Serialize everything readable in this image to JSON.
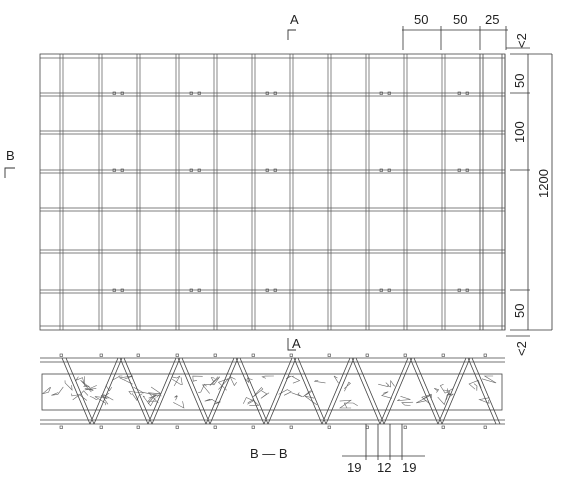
{
  "plan": {
    "section_mark_a_top": "A",
    "section_mark_a_bottom": "A",
    "section_mark_b": "B",
    "dims_top": [
      "50",
      "50",
      "25"
    ],
    "dims_right": [
      "50",
      "100",
      "50"
    ],
    "dim_height": "1200",
    "dim_edge_top": "<2",
    "dim_edge_bottom": "<2"
  },
  "section": {
    "title": "B — B",
    "dims_bottom": [
      "19",
      "12",
      "19"
    ]
  },
  "colors": {
    "line": "#333333",
    "grid": "#555555"
  }
}
